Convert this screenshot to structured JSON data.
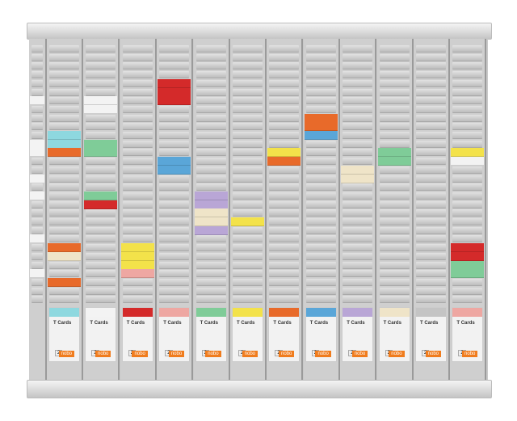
{
  "colors": {
    "cyan": "#8ed8df",
    "white": "#f3f3f3",
    "red": "#d42a2a",
    "pink": "#eea7a2",
    "green": "#7fcc98",
    "yellow": "#f3e24a",
    "orange": "#e86a2a",
    "blue": "#5aa6d8",
    "lavender": "#b9a6d6",
    "cream": "#efe4c8",
    "grey": "#c4c4c4"
  },
  "narrow_column_cards": [
    6,
    11,
    12,
    15,
    17,
    22,
    26
  ],
  "columns": [
    {
      "cards": [
        [
          10,
          "cyan"
        ],
        [
          11,
          "cyan"
        ],
        [
          12,
          "orange"
        ],
        [
          23,
          "orange"
        ],
        [
          24,
          "cream"
        ],
        [
          27,
          "orange"
        ]
      ],
      "pack": "cyan"
    },
    {
      "cards": [
        [
          6,
          "white"
        ],
        [
          7,
          "white"
        ],
        [
          11,
          "green"
        ],
        [
          12,
          "green"
        ],
        [
          17,
          "green"
        ],
        [
          18,
          "red"
        ]
      ],
      "pack": "white"
    },
    {
      "cards": [
        [
          23,
          "yellow"
        ],
        [
          24,
          "yellow"
        ],
        [
          25,
          "yellow"
        ],
        [
          26,
          "pink"
        ]
      ],
      "pack": "red"
    },
    {
      "cards": [
        [
          4,
          "red"
        ],
        [
          5,
          "red"
        ],
        [
          6,
          "red"
        ],
        [
          13,
          "blue"
        ],
        [
          14,
          "blue"
        ]
      ],
      "pack": "pink"
    },
    {
      "cards": [
        [
          17,
          "lavender"
        ],
        [
          18,
          "lavender"
        ],
        [
          19,
          "cream"
        ],
        [
          20,
          "cream"
        ],
        [
          21,
          "lavender"
        ]
      ],
      "pack": "green"
    },
    {
      "cards": [
        [
          20,
          "yellow"
        ]
      ],
      "pack": "yellow"
    },
    {
      "cards": [
        [
          12,
          "yellow"
        ],
        [
          13,
          "orange"
        ]
      ],
      "pack": "orange"
    },
    {
      "cards": [
        [
          8,
          "orange"
        ],
        [
          9,
          "orange"
        ],
        [
          10,
          "blue"
        ]
      ],
      "pack": "blue"
    },
    {
      "cards": [
        [
          14,
          "cream"
        ],
        [
          15,
          "cream"
        ]
      ],
      "pack": "lavender"
    },
    {
      "cards": [
        [
          12,
          "green"
        ],
        [
          13,
          "green"
        ]
      ],
      "pack": "cream"
    },
    {
      "cards": [],
      "pack": "grey"
    },
    {
      "cards": [
        [
          12,
          "yellow"
        ],
        [
          13,
          "white"
        ],
        [
          23,
          "red"
        ],
        [
          24,
          "red"
        ],
        [
          25,
          "green"
        ],
        [
          26,
          "green"
        ]
      ],
      "pack": "pink"
    }
  ],
  "pack_label": "T Cards",
  "pack_count": "2",
  "brand": "nobo"
}
